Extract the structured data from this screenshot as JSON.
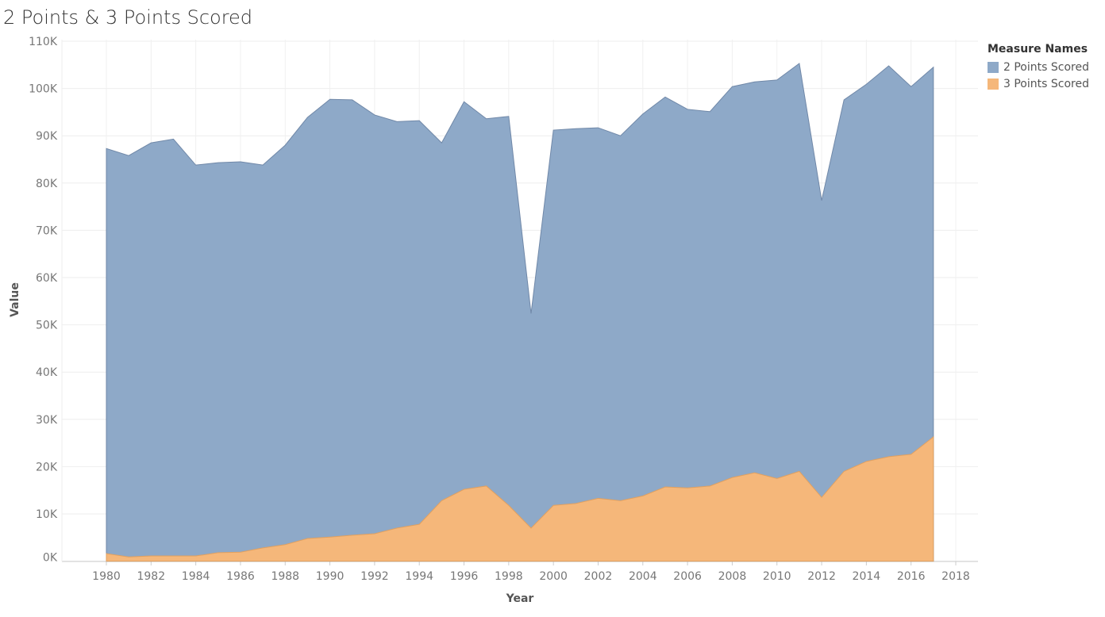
{
  "chart_data": {
    "type": "area",
    "title": "2 Points & 3 Points Scored",
    "xlabel": "Year",
    "ylabel": "Value",
    "xlim": [
      1978,
      2019
    ],
    "ylim": [
      0,
      110000
    ],
    "x_ticks": [
      "1980",
      "1982",
      "1984",
      "1986",
      "1988",
      "1990",
      "1992",
      "1994",
      "1996",
      "1998",
      "2000",
      "2002",
      "2004",
      "2006",
      "2008",
      "2010",
      "2012",
      "2014",
      "2016",
      "2018"
    ],
    "y_ticks": [
      "0K",
      "10K",
      "20K",
      "30K",
      "40K",
      "50K",
      "60K",
      "70K",
      "80K",
      "90K",
      "100K",
      "110K"
    ],
    "grid": true,
    "legend_title": "Measure Names",
    "legend_position": "top-right",
    "x": [
      1980,
      1981,
      1982,
      1983,
      1984,
      1985,
      1986,
      1987,
      1988,
      1989,
      1990,
      1991,
      1992,
      1993,
      1994,
      1995,
      1996,
      1997,
      1998,
      1999,
      2000,
      2001,
      2002,
      2003,
      2004,
      2005,
      2006,
      2007,
      2008,
      2009,
      2010,
      2011,
      2012,
      2013,
      2014,
      2015,
      2016,
      2017
    ],
    "series": [
      {
        "name": "2 Points Scored",
        "color": "#8ea9c8",
        "values": [
          87300,
          85800,
          88500,
          89300,
          83800,
          84300,
          84500,
          83800,
          88000,
          93900,
          97700,
          97600,
          94400,
          93000,
          93200,
          88500,
          97200,
          93600,
          94100,
          52400,
          91200,
          91500,
          91700,
          90000,
          94600,
          98200,
          95600,
          95100,
          100400,
          101400,
          101800,
          105300,
          76300,
          97600,
          100900,
          104800,
          100400,
          104500
        ]
      },
      {
        "name": "3 Points Scored",
        "color": "#f5b77a",
        "values": [
          1600,
          900,
          1100,
          1100,
          1100,
          1800,
          1900,
          2800,
          3500,
          4800,
          5100,
          5500,
          5800,
          7000,
          7800,
          12800,
          15200,
          15900,
          11800,
          7000,
          11800,
          12200,
          13300,
          12800,
          13800,
          15700,
          15500,
          15900,
          17700,
          18700,
          17500,
          19000,
          13500,
          19000,
          21100,
          22100,
          22600,
          26300
        ]
      }
    ]
  }
}
